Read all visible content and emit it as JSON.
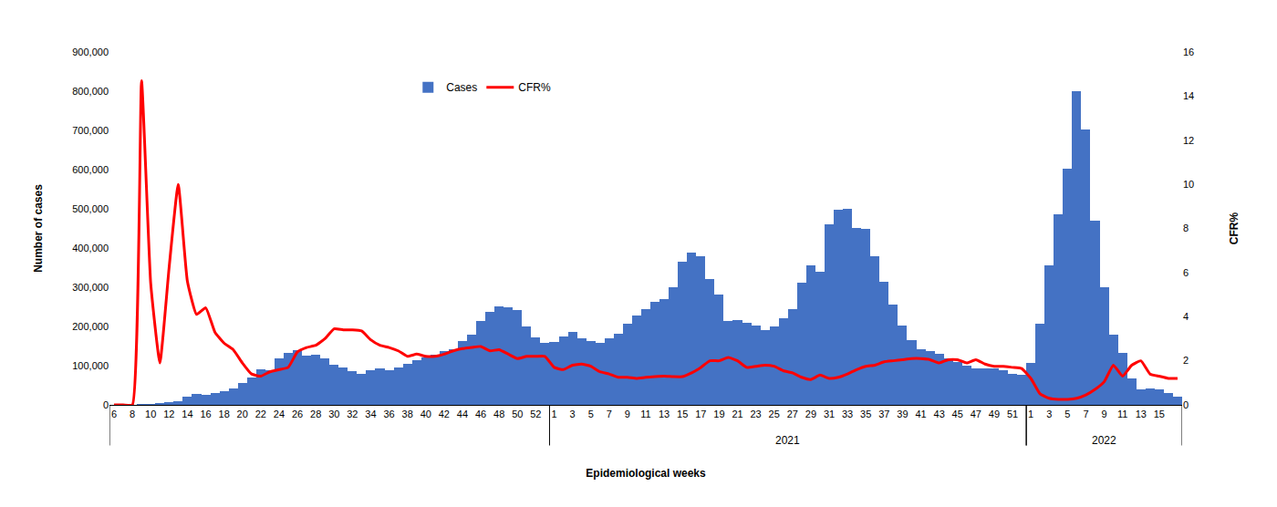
{
  "chart_data": {
    "type": "bar",
    "x_label": "Epidemiological weeks",
    "y_label": "Number of cases",
    "y2_label": "CFR%",
    "categories": [
      6,
      null,
      8,
      null,
      10,
      null,
      12,
      null,
      14,
      null,
      16,
      null,
      18,
      null,
      20,
      null,
      22,
      null,
      24,
      null,
      26,
      null,
      28,
      null,
      30,
      null,
      32,
      null,
      34,
      null,
      36,
      null,
      38,
      null,
      40,
      null,
      42,
      null,
      44,
      null,
      46,
      null,
      48,
      null,
      50,
      null,
      52,
      null,
      1,
      null,
      3,
      null,
      5,
      null,
      7,
      null,
      9,
      null,
      11,
      null,
      13,
      null,
      15,
      null,
      17,
      null,
      19,
      null,
      21,
      null,
      23,
      null,
      25,
      null,
      27,
      null,
      29,
      null,
      31,
      null,
      33,
      null,
      35,
      null,
      37,
      null,
      39,
      null,
      41,
      null,
      43,
      null,
      45,
      null,
      47,
      null,
      49,
      null,
      51,
      null,
      1,
      null,
      3,
      null,
      5,
      null,
      7,
      null,
      9,
      null,
      11,
      null,
      13,
      null,
      15,
      null,
      null
    ],
    "year_labels": [
      {
        "text": "2021",
        "from": 48,
        "to": 99
      },
      {
        "text": "2022",
        "from": 100,
        "to": 116
      }
    ],
    "series": [
      {
        "name": "Cases",
        "type": "bar",
        "color": "#4472C4",
        "values": [
          0,
          0,
          0,
          500,
          1000,
          4000,
          7000,
          10000,
          20000,
          27000,
          26000,
          30000,
          36000,
          42000,
          55000,
          70000,
          90000,
          88000,
          118000,
          133000,
          140000,
          125000,
          128000,
          118000,
          102000,
          95000,
          85000,
          80000,
          88000,
          92000,
          88000,
          95000,
          105000,
          115000,
          122000,
          128000,
          138000,
          143000,
          162000,
          180000,
          215000,
          238000,
          252000,
          248000,
          242000,
          200000,
          173000,
          158000,
          160000,
          175000,
          185000,
          170000,
          162000,
          158000,
          170000,
          182000,
          207000,
          228000,
          245000,
          263000,
          270000,
          300000,
          365000,
          388000,
          378000,
          322000,
          282000,
          215000,
          217000,
          210000,
          202000,
          190000,
          200000,
          220000,
          245000,
          312000,
          355000,
          340000,
          460000,
          498000,
          500000,
          452000,
          448000,
          378000,
          315000,
          255000,
          202000,
          165000,
          143000,
          138000,
          130000,
          118000,
          110000,
          100000,
          93000,
          93000,
          93000,
          88000,
          80000,
          76000,
          108000,
          207000,
          355000,
          485000,
          602000,
          800000,
          702000,
          470000,
          300000,
          178000,
          133000,
          68000,
          40000,
          42000,
          40000,
          30000,
          22000
        ]
      },
      {
        "name": "CFR%",
        "type": "line",
        "color": "#FF0000",
        "axis": "y2",
        "values": [
          0,
          0,
          0,
          14.7,
          5.5,
          1.9,
          6.2,
          10.0,
          5.6,
          4.1,
          4.4,
          3.3,
          2.8,
          2.5,
          1.9,
          1.4,
          1.3,
          1.5,
          1.6,
          1.7,
          2.4,
          2.6,
          2.7,
          3.0,
          3.45,
          3.4,
          3.4,
          3.35,
          2.95,
          2.7,
          2.6,
          2.45,
          2.2,
          2.3,
          2.2,
          2.2,
          2.3,
          2.45,
          2.55,
          2.6,
          2.65,
          2.45,
          2.5,
          2.3,
          2.1,
          2.2,
          2.2,
          2.2,
          1.7,
          1.6,
          1.8,
          1.85,
          1.75,
          1.5,
          1.4,
          1.25,
          1.25,
          1.2,
          1.25,
          1.28,
          1.3,
          1.28,
          1.28,
          1.45,
          1.7,
          2.0,
          2.0,
          2.15,
          2.0,
          1.7,
          1.75,
          1.8,
          1.75,
          1.55,
          1.45,
          1.25,
          1.15,
          1.35,
          1.2,
          1.25,
          1.4,
          1.6,
          1.75,
          1.8,
          1.95,
          2.0,
          2.05,
          2.1,
          2.1,
          2.05,
          1.9,
          2.05,
          2.05,
          1.9,
          2.05,
          1.85,
          1.75,
          1.75,
          1.7,
          1.65,
          1.2,
          0.5,
          0.3,
          0.25,
          0.25,
          0.3,
          0.45,
          0.7,
          1.05,
          1.8,
          1.3,
          1.8,
          2.0,
          1.4,
          1.3,
          1.2,
          1.2
        ]
      }
    ],
    "ylim": [
      0,
      900000
    ],
    "yticks": [
      0,
      {
        "value": 100000,
        "label": "100,000"
      },
      {
        "value": 200000,
        "label": "200,000"
      },
      {
        "value": 300000,
        "label": "300,000"
      },
      {
        "value": 400000,
        "label": "400,000"
      },
      {
        "value": 500000,
        "label": "500,000"
      },
      {
        "value": 600000,
        "label": "600,000"
      },
      {
        "value": 700000,
        "label": "700,000"
      },
      {
        "value": 800000,
        "label": "800,000"
      },
      {
        "value": 900000,
        "label": "900,000"
      }
    ],
    "y2lim": [
      0,
      16
    ],
    "y2ticks": [
      0,
      2,
      4,
      6,
      8,
      10,
      12,
      14,
      16
    ],
    "grid": false,
    "legend": "top"
  }
}
